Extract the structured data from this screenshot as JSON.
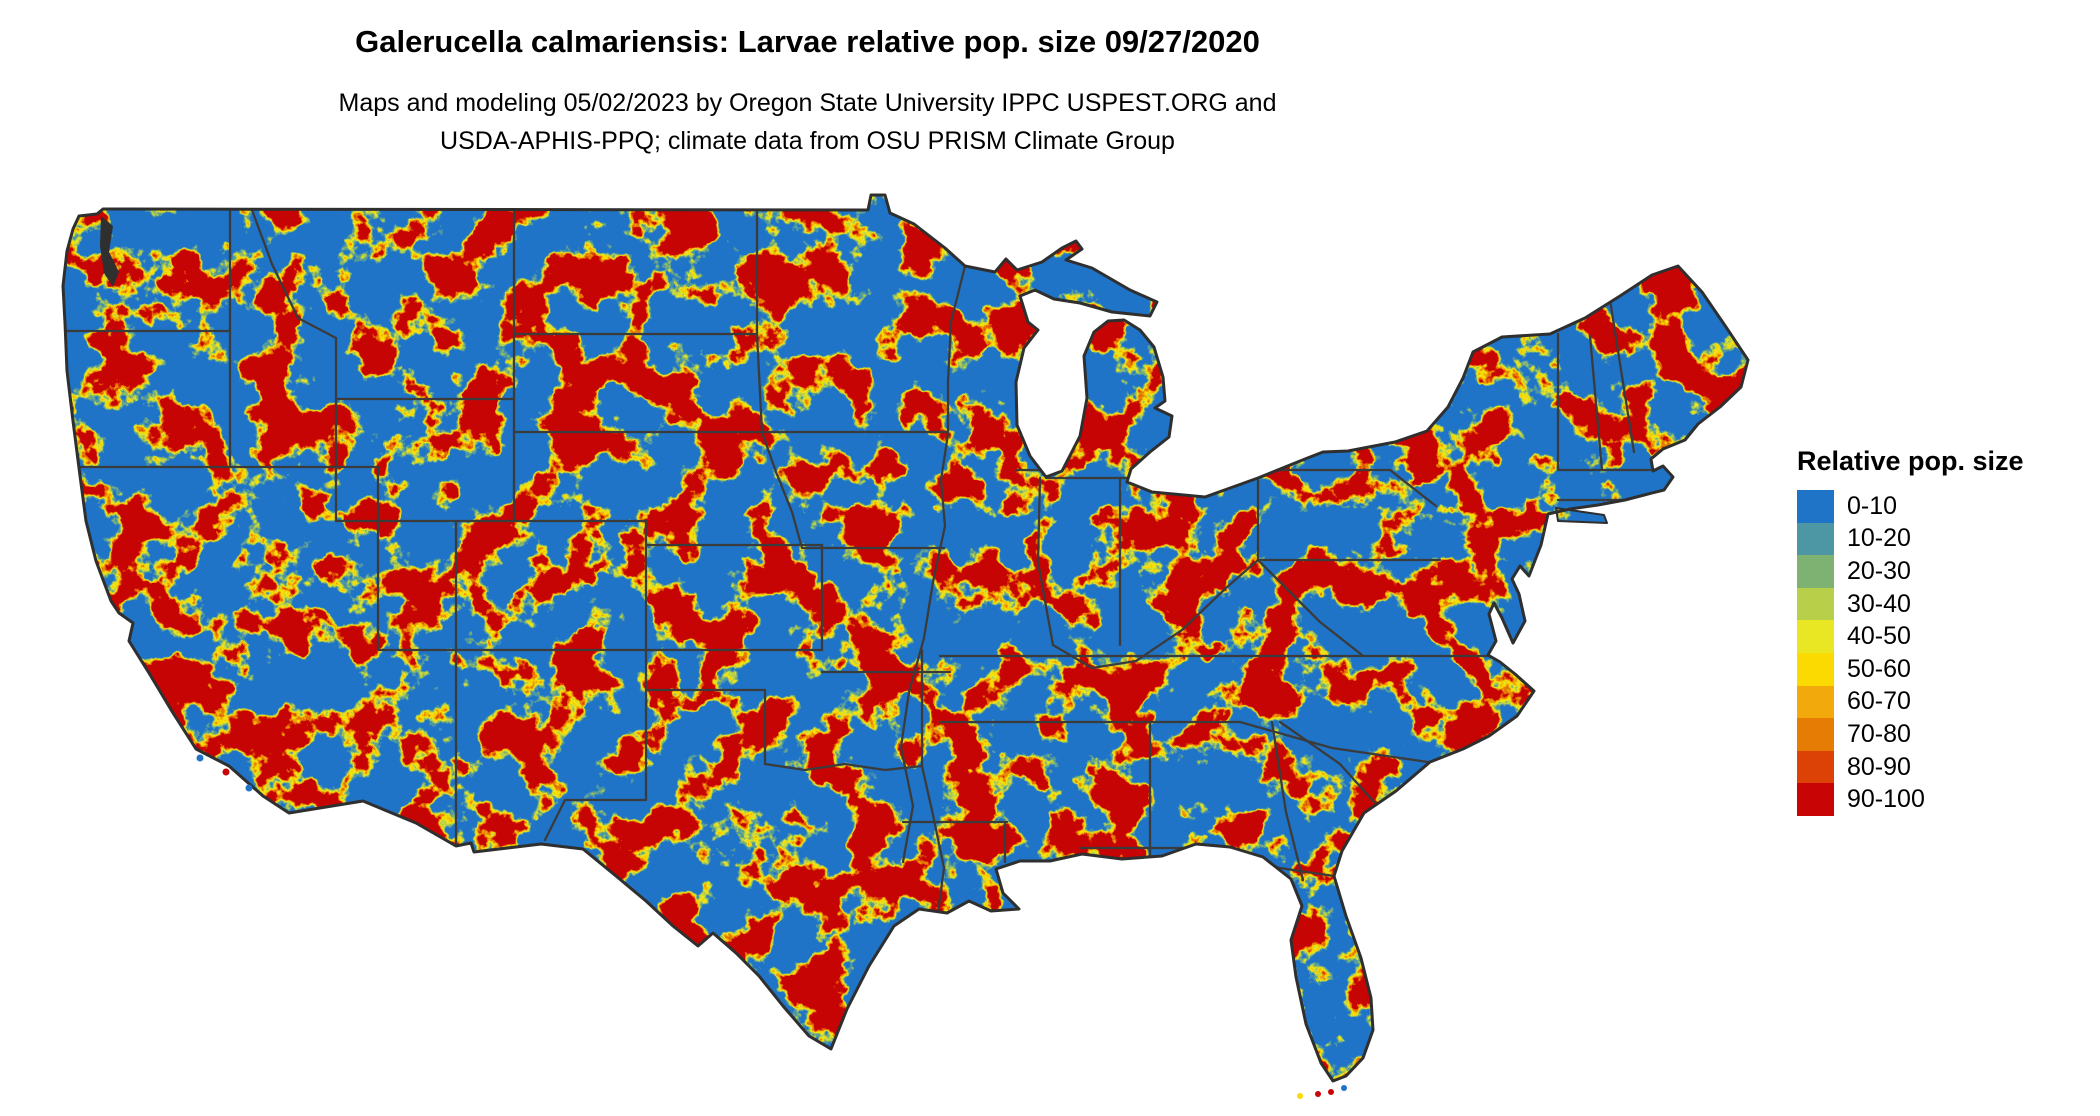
{
  "title": "Galerucella calmariensis: Larvae relative pop. size 09/27/2020",
  "subtitle_line1": "Maps and modeling 05/02/2023 by Oregon State University IPPC USPEST.ORG and",
  "subtitle_line2": "USDA-APHIS-PPQ; climate data from OSU PRISM Climate Group",
  "legend": {
    "title": "Relative pop. size",
    "bins": [
      {
        "label": "0-10",
        "color": "#2074C8"
      },
      {
        "label": "10-20",
        "color": "#4D97A4"
      },
      {
        "label": "20-30",
        "color": "#7EB272"
      },
      {
        "label": "30-40",
        "color": "#B8CF4A"
      },
      {
        "label": "40-50",
        "color": "#E9E723"
      },
      {
        "label": "50-60",
        "color": "#FADA00"
      },
      {
        "label": "60-70",
        "color": "#F2A90B"
      },
      {
        "label": "70-80",
        "color": "#E67C04"
      },
      {
        "label": "80-90",
        "color": "#DC4106"
      },
      {
        "label": "90-100",
        "color": "#C80404"
      }
    ]
  },
  "map": {
    "region": "Continental United States",
    "base_color": "#2074C8",
    "border_color": "#3B3B3B",
    "coast_color": "#2F2F2F",
    "water_color": "#FFFFFF"
  },
  "chart_data": {
    "type": "heatmap",
    "title": "Galerucella calmariensis: Larvae relative pop. size 09/27/2020",
    "legend_title": "Relative pop. size",
    "categories": [
      "0-10",
      "10-20",
      "20-30",
      "30-40",
      "40-50",
      "50-60",
      "60-70",
      "70-80",
      "80-90",
      "90-100"
    ],
    "colors": [
      "#2074C8",
      "#4D97A4",
      "#7EB272",
      "#B8CF4A",
      "#E9E723",
      "#FADA00",
      "#F2A90B",
      "#E67C04",
      "#DC4106",
      "#C80404"
    ],
    "value_range": [
      0,
      100
    ]
  }
}
